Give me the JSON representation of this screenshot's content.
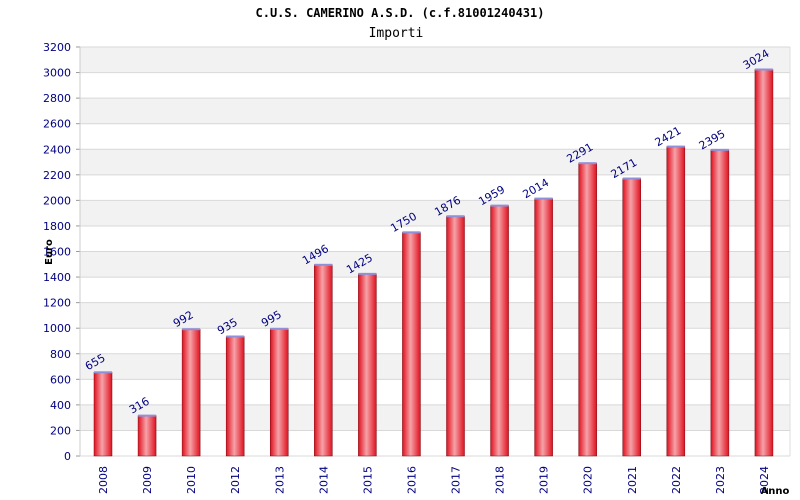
{
  "chart_data": {
    "type": "bar",
    "title": "C.U.S. CAMERINO A.S.D. (c.f.81001240431)",
    "subtitle": "Importi",
    "xlabel": "Anno",
    "ylabel": "Euro",
    "categories": [
      "2008",
      "2009",
      "2010",
      "2012",
      "2013",
      "2014",
      "2015",
      "2016",
      "2017",
      "2018",
      "2019",
      "2020",
      "2021",
      "2022",
      "2023",
      "2024"
    ],
    "values": [
      655,
      316,
      992,
      935,
      995,
      1496,
      1425,
      1750,
      1876,
      1959,
      2014,
      2291,
      2171,
      2421,
      2395,
      3024
    ],
    "ylim": [
      0,
      3200
    ],
    "yticks": [
      0,
      200,
      400,
      600,
      800,
      1000,
      1200,
      1400,
      1600,
      1800,
      2000,
      2200,
      2400,
      2600,
      2800,
      3000,
      3200
    ],
    "grid": true,
    "legend": "none",
    "colors": {
      "bar": "#e0101e",
      "bar_highlight": "#f6a2a8",
      "bar_edge": "#7a0a12",
      "bar_cap": "#9090d8",
      "band": "#f2f2f2",
      "gridline": "#d8d8d8",
      "tick_text": "#000080"
    }
  }
}
